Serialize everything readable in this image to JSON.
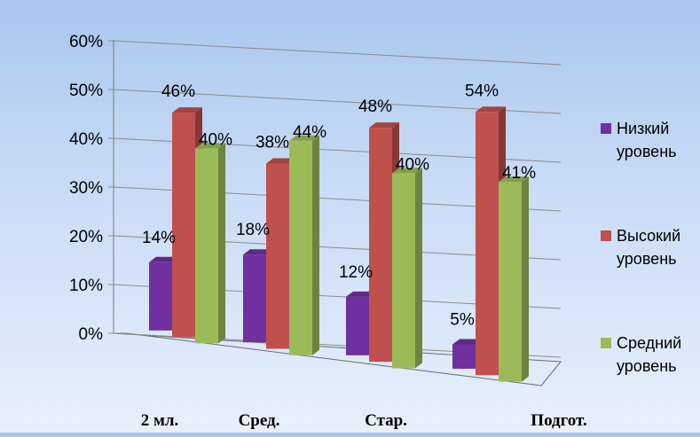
{
  "chart_data": {
    "type": "bar",
    "categories": [
      "2 мл.",
      "Сред.",
      "Стар.",
      "Подгот."
    ],
    "series": [
      {
        "name": "Низкий уровень",
        "values": [
          14,
          18,
          12,
          5
        ],
        "labels": [
          "14%",
          "18%",
          "12%",
          "5%"
        ],
        "color": "#7030a0"
      },
      {
        "name": "Высокий уровень",
        "values": [
          46,
          38,
          48,
          54
        ],
        "labels": [
          "46%",
          "38%",
          "48%",
          "54%"
        ],
        "color": "#c0504d"
      },
      {
        "name": "Средний уровень",
        "values": [
          40,
          44,
          40,
          41
        ],
        "labels": [
          "40%",
          "44%",
          "40%",
          "41%"
        ],
        "color": "#9bbb59"
      }
    ],
    "y_ticks": [
      "0%",
      "10%",
      "20%",
      "30%",
      "40%",
      "50%",
      "60%"
    ],
    "ylim": [
      0,
      60
    ],
    "grid": true,
    "legend_position": "right",
    "legend_lines": [
      [
        "Низкий",
        "уровень"
      ],
      [
        "Высокий",
        "уровень"
      ],
      [
        "Средний",
        "уровень"
      ]
    ]
  }
}
